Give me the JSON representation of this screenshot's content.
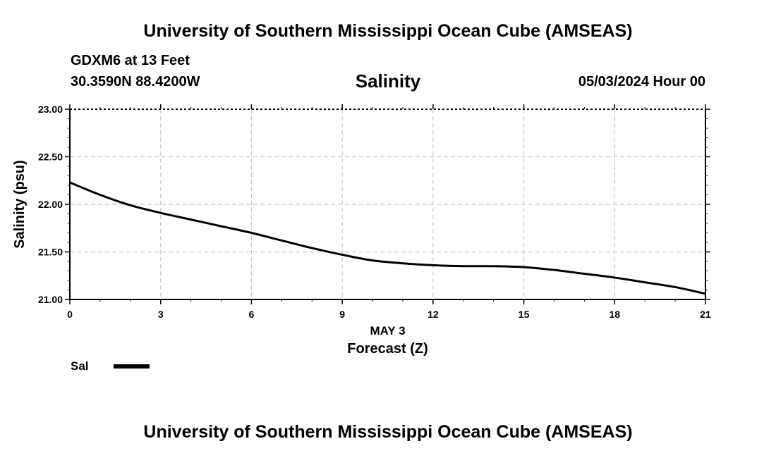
{
  "header": {
    "title": "University of Southern Mississippi Ocean Cube (AMSEAS)",
    "station": "GDXM6 at 13 Feet",
    "coords": "30.3590N  88.4200W",
    "variable": "Salinity",
    "datetime": "05/03/2024 Hour 00"
  },
  "footer": {
    "title": "University of Southern Mississippi Ocean Cube (AMSEAS)"
  },
  "legend": {
    "label": "Sal",
    "color": "#000000"
  },
  "chart_data": {
    "type": "line",
    "title": "Salinity",
    "xlabel": "Forecast (Z)",
    "xsublabel": "MAY 3",
    "ylabel": "Salinity (psu)",
    "xlim": [
      0,
      21
    ],
    "ylim": [
      21.0,
      23.0
    ],
    "xticks": [
      0,
      3,
      6,
      9,
      12,
      15,
      18,
      21
    ],
    "yticks": [
      "21.00",
      "21.50",
      "22.00",
      "22.50",
      "23.00"
    ],
    "grid": true,
    "series": [
      {
        "name": "Sal",
        "color": "#000000",
        "x": [
          0,
          1,
          2,
          3,
          4,
          5,
          6,
          7,
          8,
          9,
          10,
          11,
          12,
          13,
          14,
          15,
          16,
          17,
          18,
          19,
          20,
          21
        ],
        "y": [
          22.23,
          22.1,
          21.99,
          21.91,
          21.84,
          21.77,
          21.7,
          21.62,
          21.54,
          21.47,
          21.41,
          21.38,
          21.36,
          21.35,
          21.35,
          21.34,
          21.31,
          21.27,
          21.23,
          21.18,
          21.13,
          21.06
        ]
      }
    ]
  }
}
